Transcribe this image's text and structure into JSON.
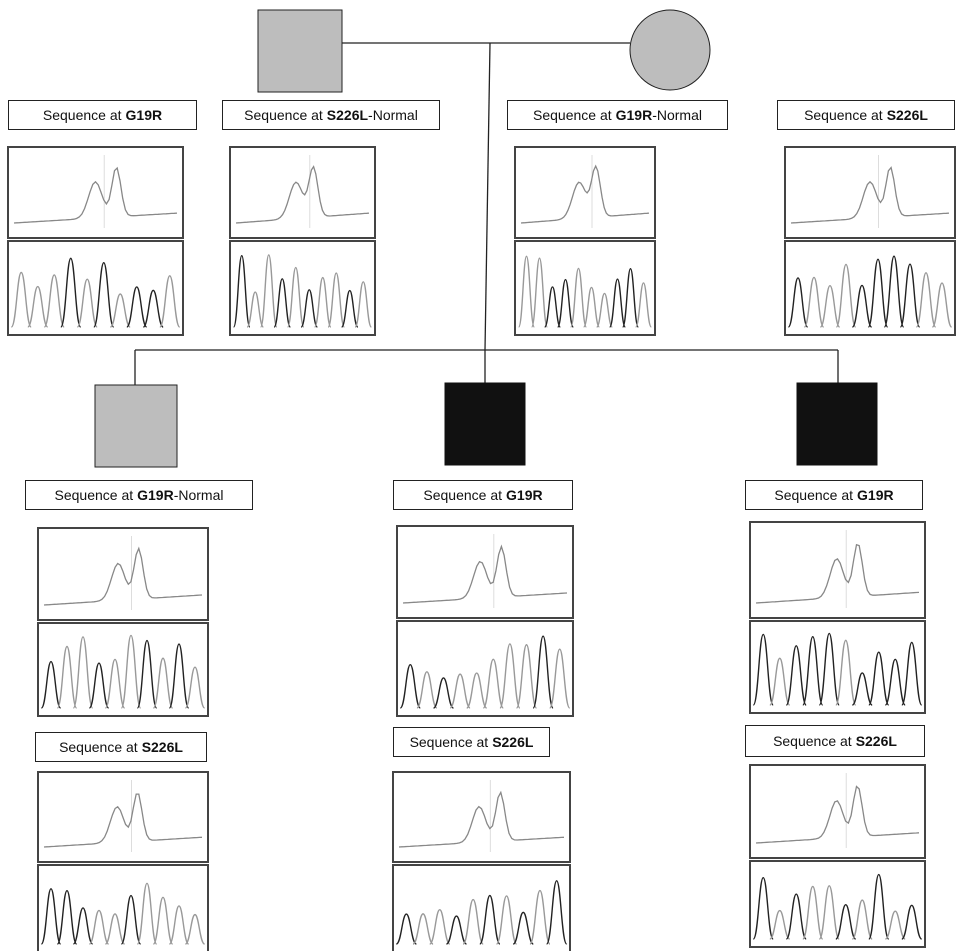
{
  "individuals": [
    {
      "labels": [
        {
          "prefix": "Sequence at",
          "mutation": "G19R"
        },
        {
          "prefix": "Sequence at",
          "mutation": "S226L",
          "suffix": "-Normal"
        }
      ]
    },
    {
      "labels": [
        {
          "prefix": "Sequence at",
          "mutation": "G19R",
          "suffix": "-Normal"
        },
        {
          "prefix": "Sequence at",
          "mutation": "S226L"
        }
      ]
    },
    {
      "labels": [
        {
          "prefix": "Sequence at",
          "mutation": "G19R",
          "suffix": "-Normal"
        },
        {
          "prefix": "Sequence at",
          "mutation": "S226L"
        }
      ]
    },
    {
      "labels": [
        {
          "prefix": "Sequence at",
          "mutation": "G19R"
        },
        {
          "prefix": "Sequence at",
          "mutation": "S226L"
        }
      ]
    },
    {
      "labels": [
        {
          "prefix": "Sequence at",
          "mutation": "G19R"
        },
        {
          "prefix": "Sequence at",
          "mutation": "S226L"
        }
      ]
    }
  ]
}
